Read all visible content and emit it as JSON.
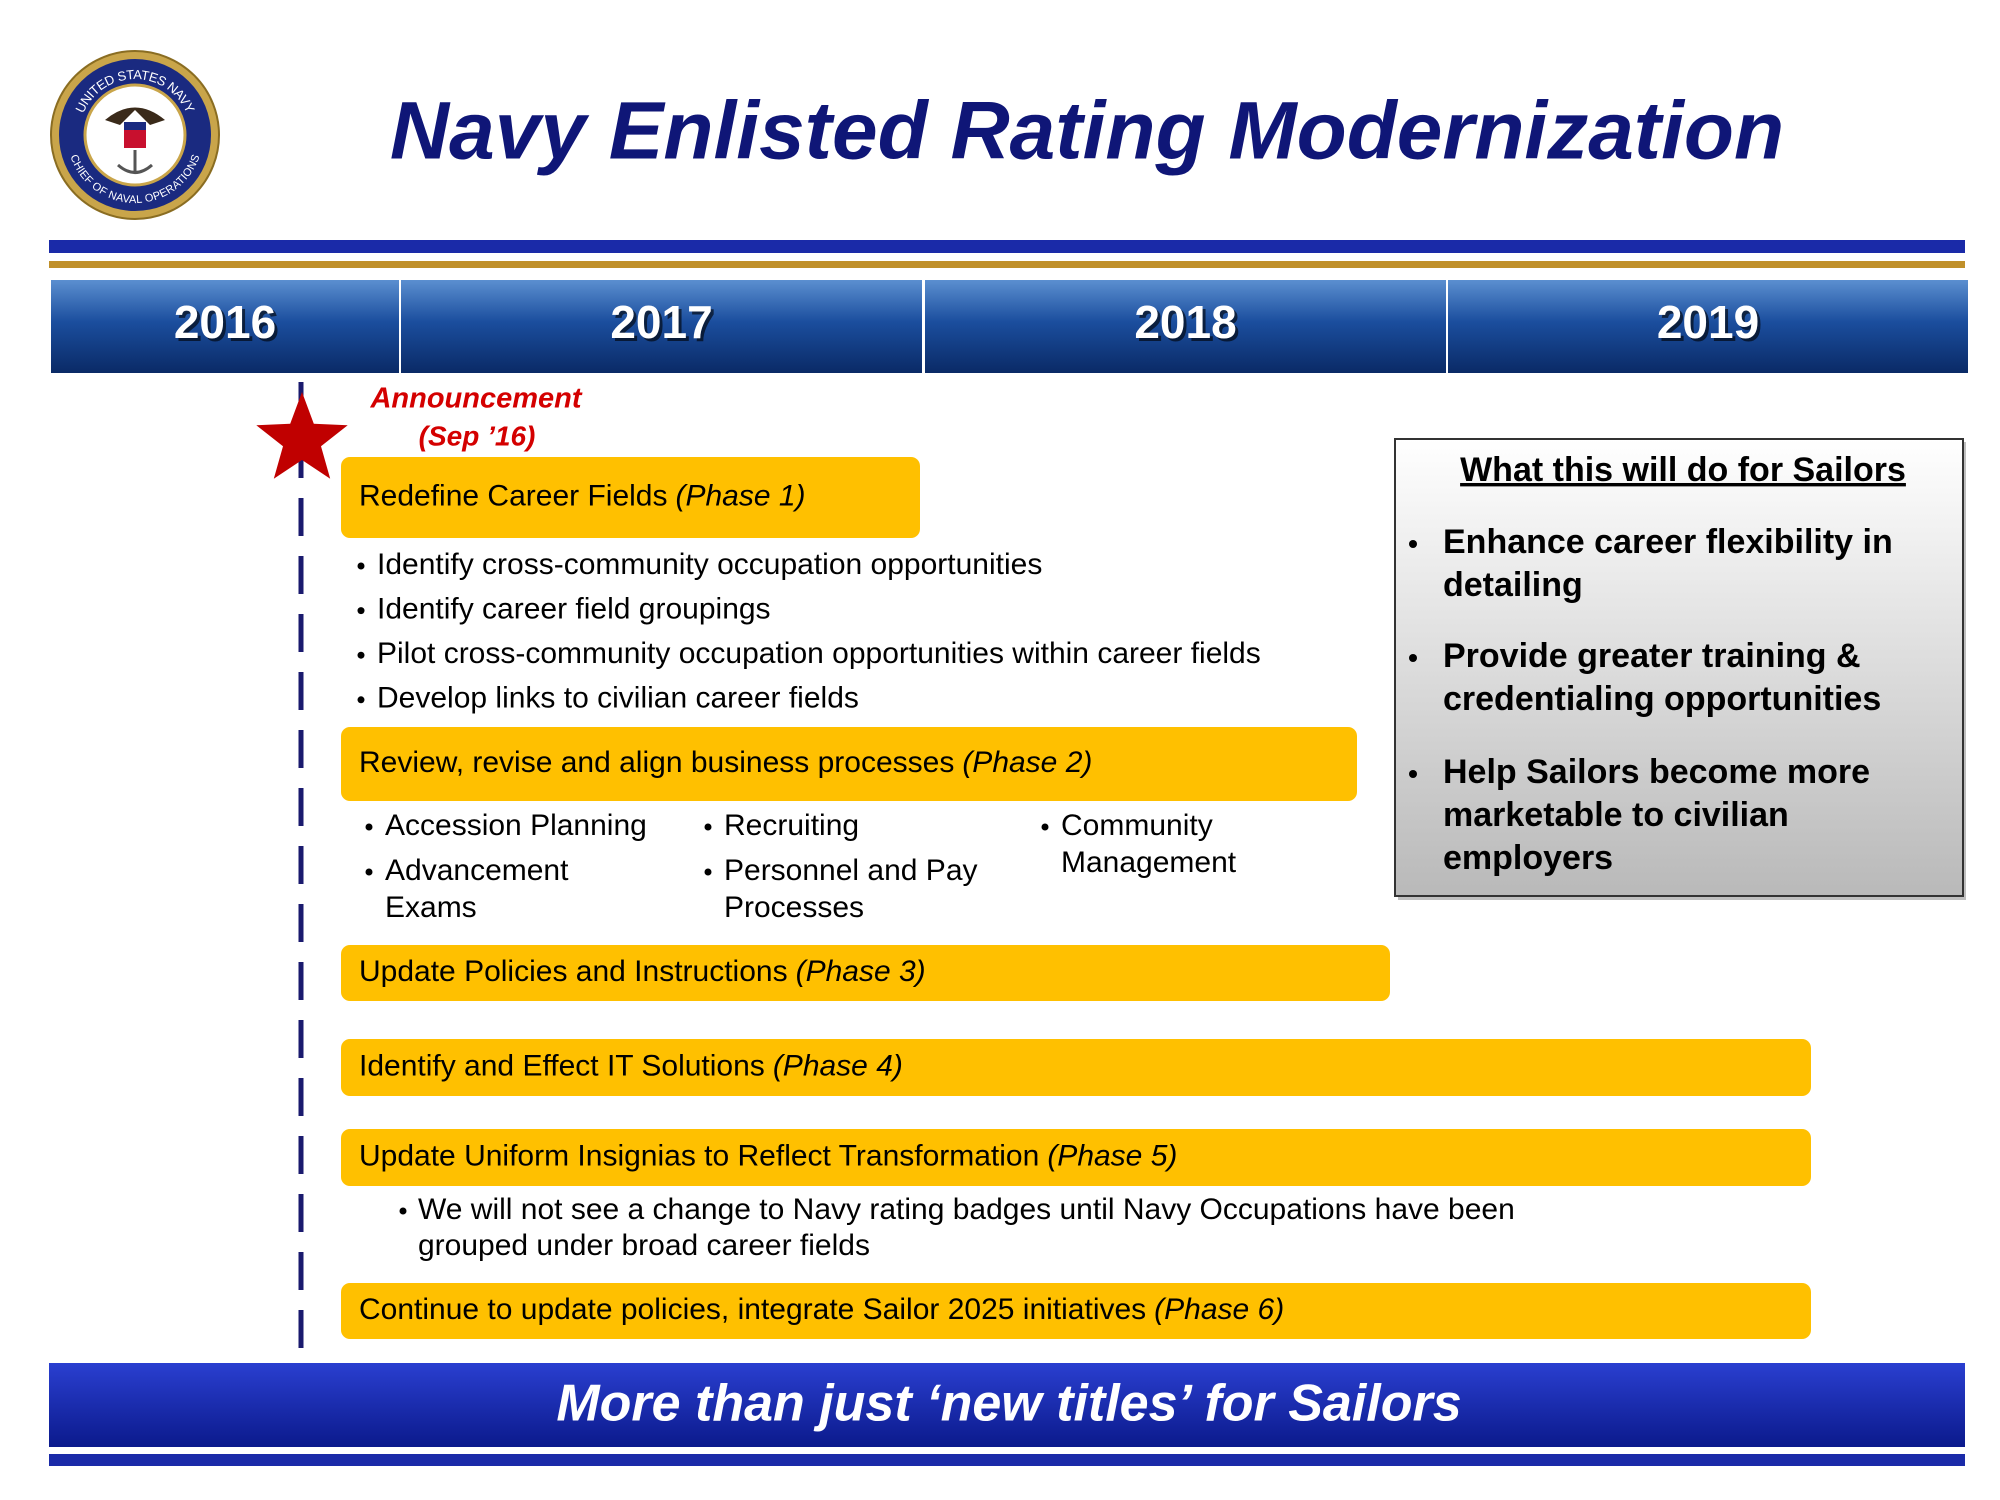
{
  "header": {
    "title": "Navy Enlisted Rating Modernization",
    "seal": {
      "top": "UNITED STATES NAVY",
      "bottom": "CHIEF OF NAVAL OPERATIONS"
    }
  },
  "timeline": {
    "years": [
      "2016",
      "2017",
      "2018",
      "2019"
    ]
  },
  "announcement": {
    "label": "Announcement",
    "date": "(Sep ’16)"
  },
  "phases": [
    {
      "title": "Redefine Career Fields",
      "phase": "(Phase 1)",
      "bullets": [
        "Identify cross-community occupation opportunities",
        "Identify career field groupings",
        "Pilot cross-community occupation opportunities within career fields",
        "Develop links to civilian career fields"
      ]
    },
    {
      "title": "Review, revise and align business processes",
      "phase": "(Phase 2)",
      "columns": [
        [
          [
            "Accession Planning"
          ],
          [
            "Advancement",
            "Exams"
          ]
        ],
        [
          [
            "Recruiting"
          ],
          [
            "Personnel and Pay",
            "Processes"
          ]
        ],
        [
          [
            "Community",
            "Management"
          ]
        ]
      ]
    },
    {
      "title": "Update Policies and Instructions",
      "phase": "(Phase 3)"
    },
    {
      "title": "Identify and Effect IT Solutions",
      "phase": "(Phase 4)"
    },
    {
      "title": "Update Uniform Insignias to Reflect Transformation",
      "phase": "(Phase 5)",
      "note": [
        "We will not see a change to Navy rating badges until Navy Occupations have been",
        "grouped under broad career fields"
      ]
    },
    {
      "title": "Continue to update policies, integrate Sailor 2025 initiatives",
      "phase": "(Phase 6)"
    }
  ],
  "benefits": {
    "heading": "What this will do for Sailors",
    "items": [
      [
        "Enhance career flexibility in",
        "detailing"
      ],
      [
        "Provide greater training &",
        "credentialing opportunities"
      ],
      [
        "Help Sailors become more",
        "marketable to civilian",
        "employers"
      ]
    ]
  },
  "footer": {
    "tagline": "More than just ‘new titles’ for Sailors"
  }
}
